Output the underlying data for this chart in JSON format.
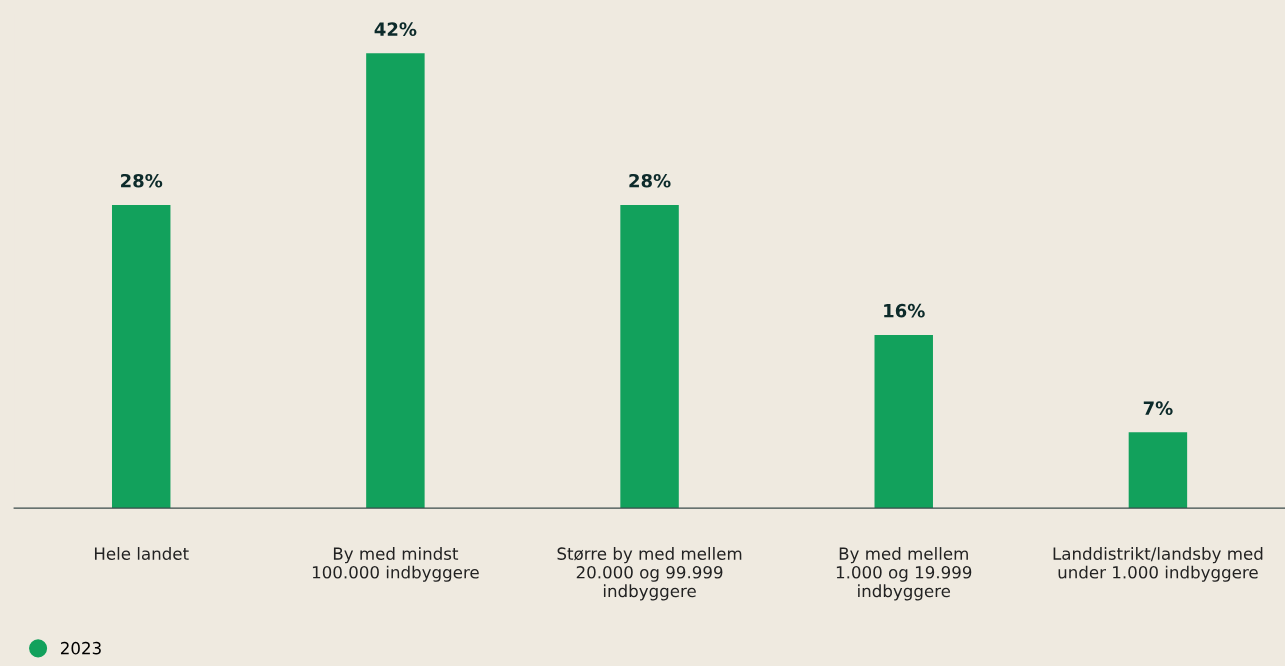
{
  "chart_data": {
    "type": "bar",
    "categories": [
      "Hele landet",
      "By med mindst\n100.000 indbyggere",
      "Større by med mellem\n20.000 og 99.999\nindbyggere",
      "By med mellem\n1.000 og 19.999\nindbyggere",
      "Landdistrikt/landsby med\nunder 1.000 indbyggere"
    ],
    "series": [
      {
        "name": "2023",
        "color": "#12a15c",
        "values": [
          28,
          42,
          28,
          16,
          7
        ],
        "value_labels": [
          "28%",
          "42%",
          "28%",
          "16%",
          "7%"
        ]
      }
    ],
    "legend": "bottom left",
    "grid": false
  }
}
